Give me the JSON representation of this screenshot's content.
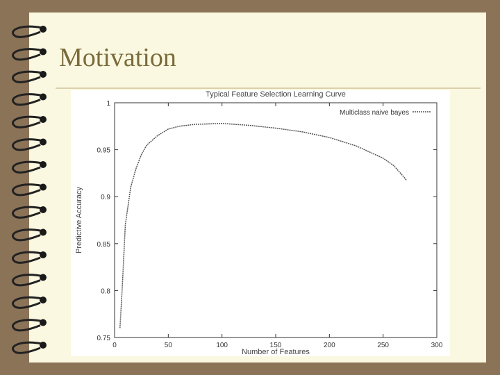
{
  "slide": {
    "title": "Motivation"
  },
  "chart_data": {
    "type": "line",
    "title": "Typical Feature Selection Learning Curve",
    "x_label": "Number of Features",
    "y_label": "Predictive Accuracy",
    "x": [
      5,
      7,
      10,
      15,
      20,
      25,
      30,
      40,
      50,
      60,
      75,
      100,
      125,
      150,
      175,
      200,
      225,
      250,
      260,
      270,
      272
    ],
    "series": [
      {
        "name": "Multiclass naive bayes",
        "color": "#555555",
        "values": [
          0.76,
          0.8,
          0.87,
          0.91,
          0.93,
          0.945,
          0.955,
          0.965,
          0.972,
          0.975,
          0.977,
          0.978,
          0.976,
          0.973,
          0.969,
          0.963,
          0.954,
          0.941,
          0.933,
          0.92,
          0.917
        ]
      }
    ],
    "xlim": [
      0,
      300
    ],
    "xticks": [
      0,
      50,
      100,
      150,
      200,
      250,
      300
    ],
    "ylim": [
      0.75,
      1
    ],
    "yticks": [
      0.75,
      0.8,
      0.85,
      0.9,
      0.95,
      1
    ],
    "legend": "upper right"
  }
}
